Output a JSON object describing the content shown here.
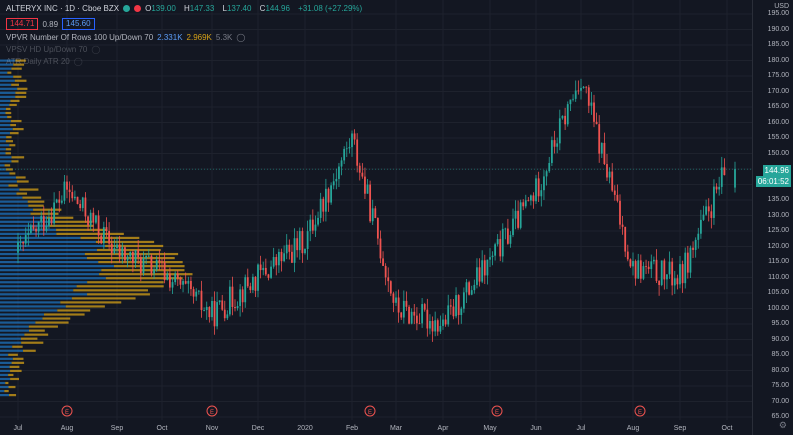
{
  "header": {
    "symbol": "ALTERYX INC · 1D · Cboe BZX",
    "bid": "144.71",
    "spread": "0.89",
    "ask": "145.60",
    "ohlc": [
      {
        "k": "O",
        "v": "139.00"
      },
      {
        "k": "H",
        "v": "147.33"
      },
      {
        "k": "L",
        "v": "137.40"
      },
      {
        "k": "C",
        "v": "144.96"
      }
    ],
    "change": "+31.08 (+27.29%)",
    "indicators": [
      {
        "label": "VPVR Number Of Rows 100 Up/Down 70",
        "v1": "2.331K",
        "v2": "2.969K",
        "v3": "5.3K"
      },
      {
        "label": "VPSV HD Up/Down 70"
      },
      {
        "label": "ATR Daily ATR 20"
      }
    ]
  },
  "price_axis": {
    "currency": "USD",
    "ticks": [
      "195.00",
      "190.00",
      "185.00",
      "180.00",
      "175.00",
      "170.00",
      "165.00",
      "160.00",
      "155.00",
      "150.00",
      "145.00",
      "140.00",
      "135.00",
      "130.00",
      "125.00",
      "120.00",
      "115.00",
      "110.00",
      "105.00",
      "100.00",
      "95.00",
      "90.00",
      "85.00",
      "80.00",
      "75.00",
      "70.00",
      "65.00"
    ],
    "last_price": "144.96",
    "countdown": "06:01:52"
  },
  "time_axis": {
    "labels": [
      "Jul",
      "Aug",
      "Sep",
      "Oct",
      "Nov",
      "Dec",
      "2020",
      "Feb",
      "Mar",
      "Apr",
      "May",
      "Jun",
      "Jul",
      "Aug",
      "Sep",
      "Oct"
    ],
    "earnings_marker": "E"
  },
  "colors": {
    "up": "#26a69a",
    "down": "#ef5350",
    "vp_up": "#1e73be",
    "vp_down": "#d4a017",
    "bg": "#131722"
  },
  "icons": [
    "eye-icon",
    "settings-icon"
  ],
  "chart_data": {
    "type": "candlestick",
    "xlabel": "",
    "ylabel": "",
    "ylim": [
      65,
      195
    ],
    "close_by_month": [
      {
        "x": "Jul",
        "close": 118
      },
      {
        "x": "Aug",
        "close": 138
      },
      {
        "x": "Sep",
        "close": 118
      },
      {
        "x": "Oct",
        "close": 112
      },
      {
        "x": "Nov",
        "close": 98
      },
      {
        "x": "Dec",
        "close": 110
      },
      {
        "x": "2020",
        "close": 122
      },
      {
        "x": "Feb",
        "close": 155
      },
      {
        "x": "Mar",
        "close": 100
      },
      {
        "x": "Apr",
        "close": 95
      },
      {
        "x": "May",
        "close": 115
      },
      {
        "x": "Jun",
        "close": 138
      },
      {
        "x": "Jul",
        "close": 175
      },
      {
        "x": "Aug",
        "close": 113
      },
      {
        "x": "Sep",
        "close": 110
      },
      {
        "x": "Oct",
        "close": 144.96
      }
    ],
    "series": [
      {
        "values": [
          118,
          138,
          118,
          112,
          98,
          110,
          122,
          155,
          100,
          95,
          115,
          138,
          175,
          113,
          110,
          144.96
        ]
      }
    ]
  }
}
